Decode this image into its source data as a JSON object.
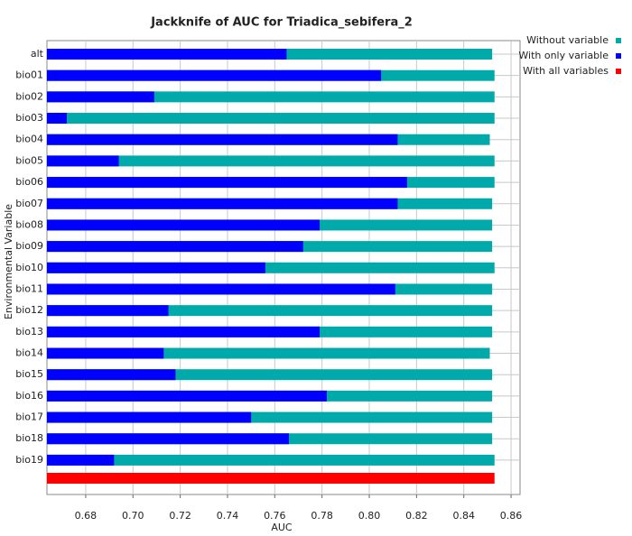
{
  "chart_data": {
    "type": "jackknife_bar",
    "title": "Jackknife of AUC for Triadica_sebifera_2",
    "x_label": "AUC",
    "y_label": "Environmental Variable",
    "categories": [
      "alt",
      "bio01",
      "bio02",
      "bio03",
      "bio04",
      "bio05",
      "bio06",
      "bio07",
      "bio08",
      "bio09",
      "bio10",
      "bio11",
      "bio12",
      "bio13",
      "bio14",
      "bio15",
      "bio16",
      "bio17",
      "bio18",
      "bio19"
    ],
    "series": [
      {
        "name": "Without variable",
        "color": "#00aaaa",
        "values": [
          0.852,
          0.853,
          0.853,
          0.853,
          0.851,
          0.853,
          0.853,
          0.852,
          0.852,
          0.852,
          0.853,
          0.852,
          0.852,
          0.852,
          0.851,
          0.852,
          0.852,
          0.852,
          0.852,
          0.853
        ]
      },
      {
        "name": "With only variable",
        "color": "#0000ff",
        "values": [
          0.765,
          0.805,
          0.709,
          0.672,
          0.812,
          0.694,
          0.816,
          0.812,
          0.779,
          0.772,
          0.756,
          0.811,
          0.715,
          0.779,
          0.713,
          0.718,
          0.782,
          0.75,
          0.766,
          0.692
        ]
      }
    ],
    "all_variables": {
      "name": "With all variables",
      "color": "#ff0000",
      "value": 0.853
    },
    "xlim": [
      0.6636,
      0.8638
    ],
    "xticks": [
      0.68,
      {
        "value": 0.7,
        "label": "0.70"
      },
      0.72,
      0.74,
      0.76,
      0.78,
      {
        "value": 0.8,
        "label": "0.80"
      },
      0.82,
      0.84,
      0.86
    ],
    "grid": true,
    "legend": "top-right"
  }
}
